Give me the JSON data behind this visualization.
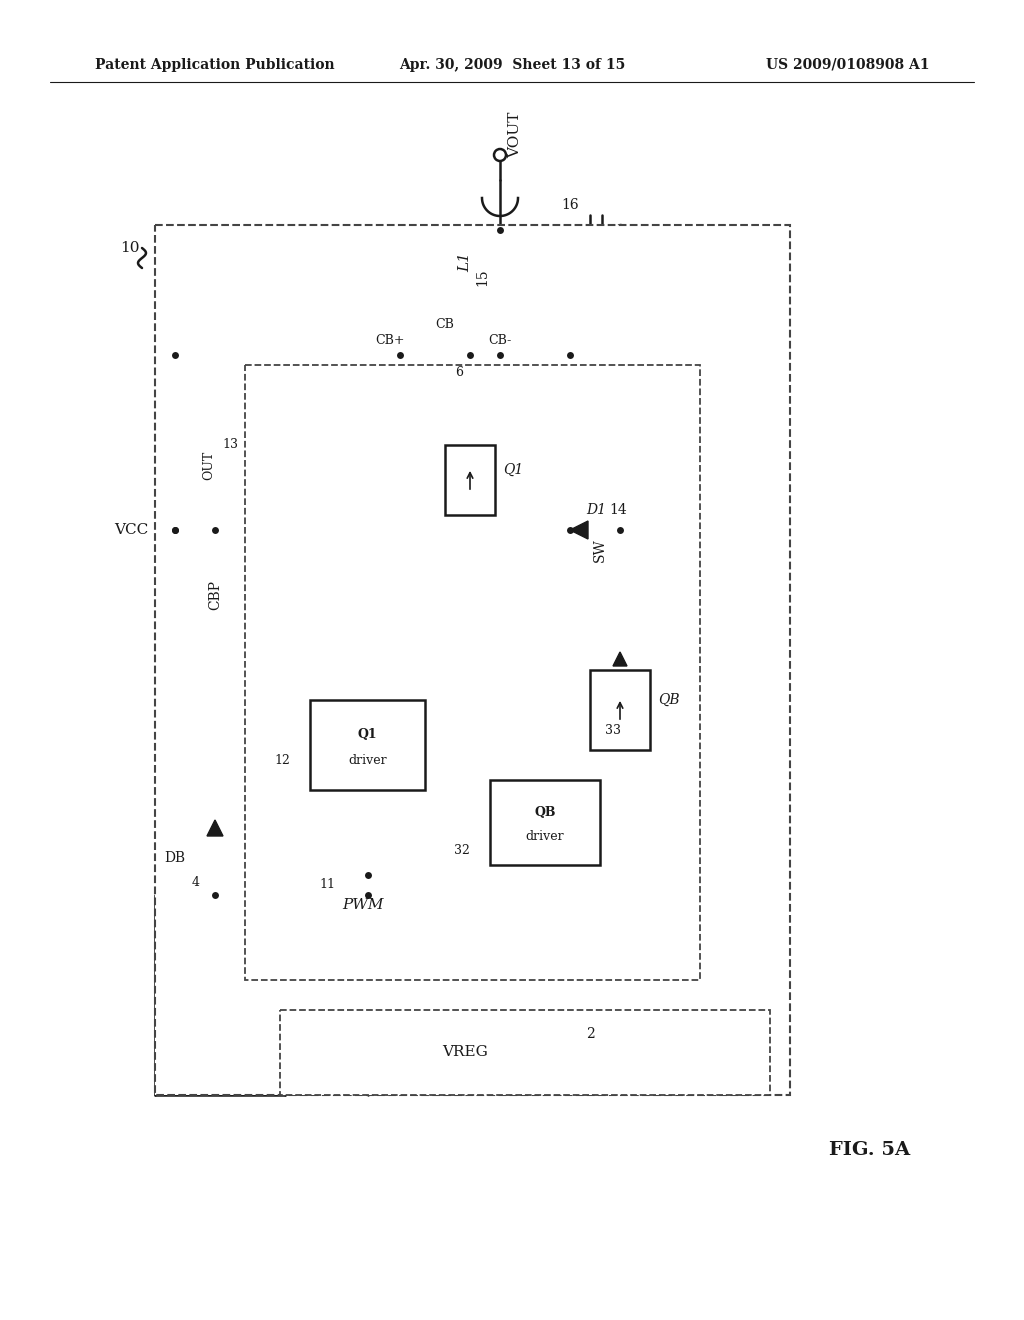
{
  "title_left": "Patent Application Publication",
  "title_center": "Apr. 30, 2009  Sheet 13 of 15",
  "title_right": "US 2009/0108908 A1",
  "fig_label": "FIG. 5A",
  "background_color": "#ffffff",
  "line_color": "#1a1a1a",
  "text_color": "#1a1a1a"
}
